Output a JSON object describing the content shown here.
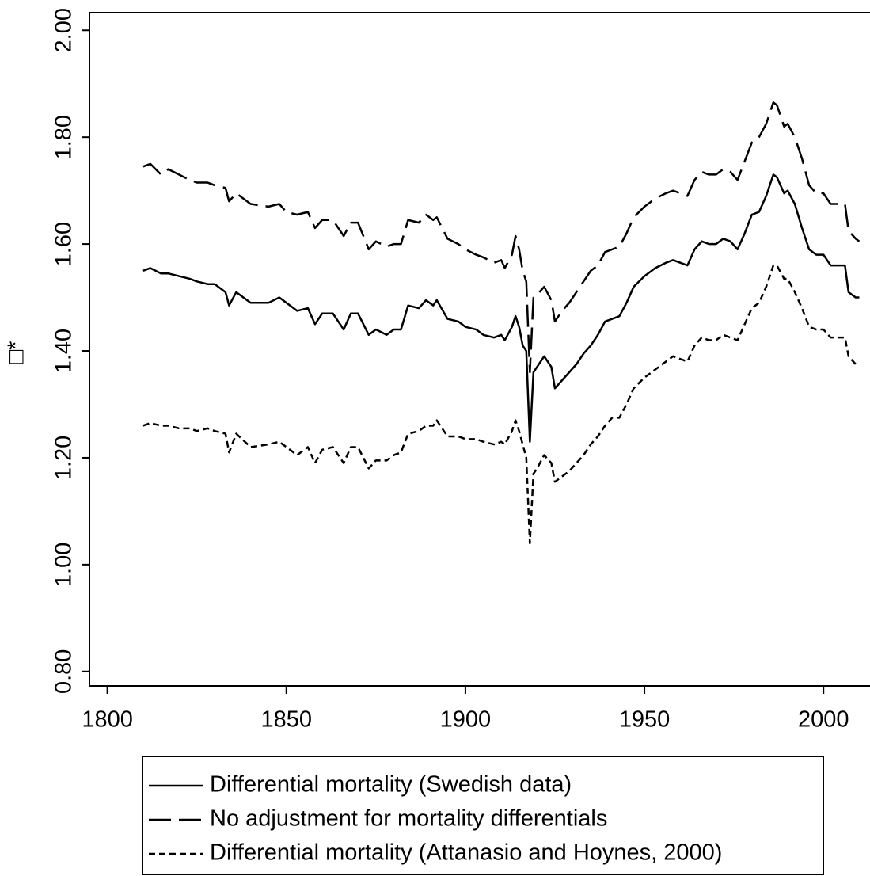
{
  "chart_data": {
    "type": "line",
    "ylabel": "□*",
    "x": [
      1810,
      1812,
      1815,
      1817,
      1820,
      1823,
      1825,
      1828,
      1830,
      1833,
      1834,
      1836,
      1840,
      1845,
      1848,
      1850,
      1853,
      1856,
      1858,
      1860,
      1863,
      1866,
      1868,
      1870,
      1873,
      1875,
      1878,
      1880,
      1882,
      1884,
      1887,
      1889,
      1891,
      1892,
      1895,
      1898,
      1900,
      1903,
      1905,
      1908,
      1910,
      1911,
      1913,
      1914,
      1915,
      1916,
      1917,
      1918,
      1919,
      1920,
      1922,
      1924,
      1925,
      1927,
      1929,
      1931,
      1933,
      1935,
      1937,
      1939,
      1941,
      1943,
      1945,
      1947,
      1950,
      1953,
      1956,
      1958,
      1960,
      1962,
      1964,
      1966,
      1968,
      1970,
      1972,
      1974,
      1976,
      1978,
      1980,
      1982,
      1984,
      1986,
      1987,
      1989,
      1990,
      1992,
      1994,
      1996,
      1998,
      2000,
      2002,
      2004,
      2006,
      2007,
      2009,
      2010
    ],
    "series": [
      {
        "name": "Differential mortality (Swedish data)",
        "color": "#000000",
        "dash": "solid",
        "values": [
          1.55,
          1.555,
          1.545,
          1.545,
          1.54,
          1.535,
          1.53,
          1.525,
          1.525,
          1.51,
          1.485,
          1.51,
          1.49,
          1.49,
          1.5,
          1.49,
          1.475,
          1.48,
          1.45,
          1.47,
          1.47,
          1.44,
          1.47,
          1.47,
          1.43,
          1.44,
          1.43,
          1.44,
          1.44,
          1.485,
          1.48,
          1.495,
          1.485,
          1.495,
          1.46,
          1.455,
          1.445,
          1.44,
          1.43,
          1.425,
          1.43,
          1.42,
          1.445,
          1.465,
          1.445,
          1.41,
          1.4,
          1.23,
          1.36,
          1.37,
          1.39,
          1.37,
          1.33,
          1.345,
          1.36,
          1.375,
          1.395,
          1.41,
          1.43,
          1.455,
          1.46,
          1.465,
          1.49,
          1.52,
          1.54,
          1.555,
          1.565,
          1.57,
          1.565,
          1.56,
          1.59,
          1.605,
          1.6,
          1.6,
          1.61,
          1.605,
          1.59,
          1.62,
          1.655,
          1.66,
          1.69,
          1.73,
          1.725,
          1.695,
          1.7,
          1.675,
          1.63,
          1.59,
          1.58,
          1.58,
          1.56,
          1.56,
          1.56,
          1.51,
          1.5,
          1.5
        ]
      },
      {
        "name": "No adjustment for mortality differentials",
        "color": "#000000",
        "dash": "long",
        "values": [
          1.745,
          1.75,
          1.73,
          1.74,
          1.73,
          1.72,
          1.715,
          1.715,
          1.71,
          1.705,
          1.68,
          1.695,
          1.675,
          1.67,
          1.675,
          1.66,
          1.655,
          1.66,
          1.63,
          1.645,
          1.645,
          1.615,
          1.64,
          1.64,
          1.59,
          1.605,
          1.595,
          1.6,
          1.6,
          1.645,
          1.64,
          1.655,
          1.645,
          1.65,
          1.61,
          1.6,
          1.59,
          1.58,
          1.575,
          1.565,
          1.57,
          1.555,
          1.58,
          1.615,
          1.59,
          1.55,
          1.53,
          1.36,
          1.5,
          1.505,
          1.52,
          1.495,
          1.455,
          1.475,
          1.49,
          1.51,
          1.53,
          1.55,
          1.56,
          1.585,
          1.59,
          1.595,
          1.62,
          1.65,
          1.67,
          1.685,
          1.695,
          1.7,
          1.695,
          1.69,
          1.72,
          1.735,
          1.73,
          1.73,
          1.74,
          1.735,
          1.72,
          1.755,
          1.79,
          1.8,
          1.825,
          1.865,
          1.86,
          1.82,
          1.825,
          1.8,
          1.76,
          1.71,
          1.695,
          1.695,
          1.675,
          1.675,
          1.675,
          1.625,
          1.61,
          1.605
        ]
      },
      {
        "name": "Differential mortality (Attanasio and Hoynes, 2000)",
        "color": "#000000",
        "dash": "short",
        "values": [
          1.26,
          1.265,
          1.26,
          1.26,
          1.255,
          1.255,
          1.25,
          1.255,
          1.25,
          1.245,
          1.21,
          1.245,
          1.22,
          1.225,
          1.23,
          1.22,
          1.205,
          1.22,
          1.19,
          1.215,
          1.22,
          1.19,
          1.22,
          1.22,
          1.18,
          1.195,
          1.195,
          1.205,
          1.21,
          1.245,
          1.25,
          1.26,
          1.26,
          1.27,
          1.24,
          1.24,
          1.235,
          1.235,
          1.23,
          1.225,
          1.23,
          1.225,
          1.25,
          1.27,
          1.25,
          1.225,
          1.2,
          1.04,
          1.17,
          1.18,
          1.205,
          1.19,
          1.155,
          1.165,
          1.175,
          1.19,
          1.205,
          1.225,
          1.24,
          1.26,
          1.275,
          1.275,
          1.3,
          1.33,
          1.35,
          1.365,
          1.38,
          1.39,
          1.385,
          1.38,
          1.41,
          1.425,
          1.42,
          1.42,
          1.43,
          1.425,
          1.42,
          1.45,
          1.48,
          1.49,
          1.52,
          1.56,
          1.56,
          1.535,
          1.535,
          1.51,
          1.48,
          1.445,
          1.44,
          1.44,
          1.425,
          1.425,
          1.425,
          1.39,
          1.375,
          1.375
        ]
      }
    ],
    "xlim": [
      1795,
      2013
    ],
    "xticks": [
      1800,
      1850,
      1900,
      1950,
      2000
    ],
    "ylim": [
      0.773,
      2.033
    ],
    "yticks": [
      {
        "value": 0.8,
        "label": "0.80"
      },
      {
        "value": 1.0,
        "label": "1.00"
      },
      {
        "value": 1.2,
        "label": "1.20"
      },
      {
        "value": 1.4,
        "label": "1.40"
      },
      {
        "value": 1.6,
        "label": "1.60"
      },
      {
        "value": 1.8,
        "label": "1.80"
      },
      {
        "value": 2.0,
        "label": "2.00"
      }
    ],
    "grid": false,
    "legend": "bottom"
  }
}
